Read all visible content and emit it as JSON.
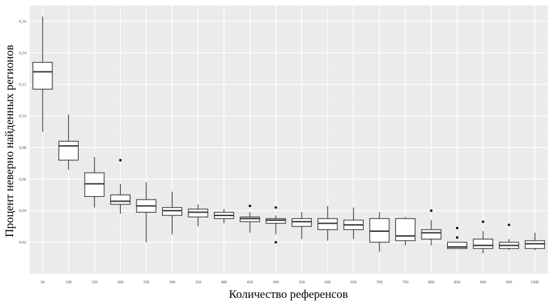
{
  "chart_data": {
    "type": "box",
    "title": "",
    "xlabel": "Количество референсов",
    "ylabel": "Процент неверно найденных регионов",
    "ylim": [
      0,
      0.17
    ],
    "y_ticks": [
      0.02,
      0.04,
      0.06,
      0.08,
      0.1,
      0.12,
      0.14,
      0.16
    ],
    "y_tick_labels": [
      "0,02",
      "0,04",
      "0,06",
      "0,08",
      "0,10",
      "0,12",
      "0,14",
      "0,16"
    ],
    "grid": true,
    "categories": [
      "50",
      "100",
      "150",
      "200",
      "250",
      "300",
      "350",
      "400",
      "450",
      "500",
      "550",
      "600",
      "650",
      "700",
      "750",
      "800",
      "850",
      "900",
      "950",
      "1000"
    ],
    "boxes": [
      {
        "low": 0.09,
        "q1": 0.117,
        "median": 0.128,
        "q3": 0.134,
        "high": 0.163,
        "outliers": []
      },
      {
        "low": 0.066,
        "q1": 0.072,
        "median": 0.081,
        "q3": 0.084,
        "high": 0.101,
        "outliers": []
      },
      {
        "low": 0.042,
        "q1": 0.049,
        "median": 0.057,
        "q3": 0.064,
        "high": 0.074,
        "outliers": []
      },
      {
        "low": 0.038,
        "q1": 0.044,
        "median": 0.046,
        "q3": 0.05,
        "high": 0.057,
        "outliers": [
          0.072
        ]
      },
      {
        "low": 0.02,
        "q1": 0.039,
        "median": 0.043,
        "q3": 0.047,
        "high": 0.058,
        "outliers": []
      },
      {
        "low": 0.025,
        "q1": 0.037,
        "median": 0.04,
        "q3": 0.042,
        "high": 0.052,
        "outliers": []
      },
      {
        "low": 0.03,
        "q1": 0.036,
        "median": 0.039,
        "q3": 0.041,
        "high": 0.044,
        "outliers": []
      },
      {
        "low": 0.032,
        "q1": 0.035,
        "median": 0.037,
        "q3": 0.039,
        "high": 0.041,
        "outliers": []
      },
      {
        "low": 0.026,
        "q1": 0.033,
        "median": 0.035,
        "q3": 0.036,
        "high": 0.039,
        "outliers": [
          0.043
        ]
      },
      {
        "low": 0.025,
        "q1": 0.032,
        "median": 0.034,
        "q3": 0.035,
        "high": 0.037,
        "outliers": [
          0.042,
          0.02
        ]
      },
      {
        "low": 0.022,
        "q1": 0.03,
        "median": 0.033,
        "q3": 0.035,
        "high": 0.039,
        "outliers": []
      },
      {
        "low": 0.021,
        "q1": 0.028,
        "median": 0.032,
        "q3": 0.035,
        "high": 0.043,
        "outliers": []
      },
      {
        "low": 0.022,
        "q1": 0.028,
        "median": 0.031,
        "q3": 0.034,
        "high": 0.042,
        "outliers": []
      },
      {
        "low": 0.014,
        "q1": 0.02,
        "median": 0.027,
        "q3": 0.035,
        "high": 0.039,
        "outliers": []
      },
      {
        "low": 0.018,
        "q1": 0.021,
        "median": 0.024,
        "q3": 0.035,
        "high": 0.036,
        "outliers": []
      },
      {
        "low": 0.018,
        "q1": 0.022,
        "median": 0.026,
        "q3": 0.028,
        "high": 0.034,
        "outliers": [
          0.04
        ]
      },
      {
        "low": 0.016,
        "q1": 0.016,
        "median": 0.017,
        "q3": 0.02,
        "high": 0.02,
        "outliers": [
          0.029,
          0.023
        ]
      },
      {
        "low": 0.013,
        "q1": 0.016,
        "median": 0.018,
        "q3": 0.022,
        "high": 0.027,
        "outliers": [
          0.033
        ]
      },
      {
        "low": 0.015,
        "q1": 0.016,
        "median": 0.018,
        "q3": 0.02,
        "high": 0.022,
        "outliers": [
          0.031
        ]
      },
      {
        "low": 0.015,
        "q1": 0.016,
        "median": 0.019,
        "q3": 0.021,
        "high": 0.026,
        "outliers": []
      }
    ]
  }
}
